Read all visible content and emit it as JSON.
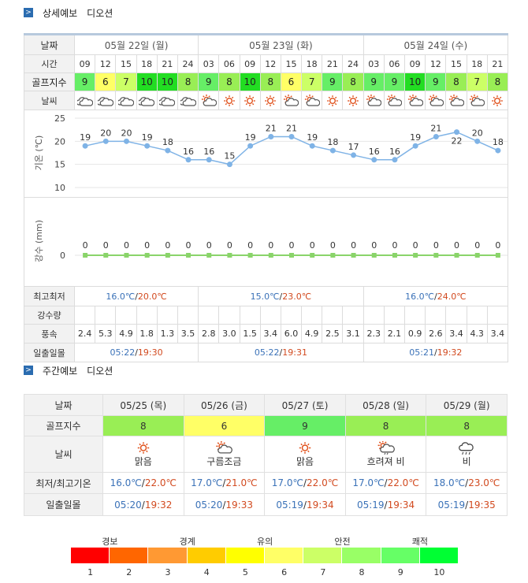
{
  "detail": {
    "title": "상세예보",
    "location": "디오션"
  },
  "labels": {
    "date": "날짜",
    "time": "시간",
    "golf": "골프지수",
    "weather": "날씨",
    "temp_axis": "기온 (℃)",
    "rain_axis": "강수 (mm)",
    "minmax": "최고최저",
    "rain": "강수량",
    "wind": "풍속",
    "sun": "일출일몰"
  },
  "days": [
    {
      "date": "05월 22일 (월)",
      "times": [
        "09",
        "12",
        "15",
        "18",
        "21",
        "24"
      ],
      "golf": [
        9,
        6,
        7,
        10,
        10,
        8
      ],
      "weather": [
        "cloud",
        "cloud",
        "cloud",
        "cloud",
        "cloud",
        "cloud"
      ],
      "min": "16.0℃",
      "max": "20.0℃",
      "sunrise": "05:22",
      "sunset": "19:30"
    },
    {
      "date": "05월 23일 (화)",
      "times": [
        "03",
        "06",
        "09",
        "12",
        "15",
        "18",
        "21",
        "24"
      ],
      "golf": [
        9,
        8,
        10,
        8,
        6,
        7,
        9,
        8
      ],
      "weather": [
        "partly",
        "sun",
        "sun",
        "sun",
        "partly",
        "partly",
        "sun",
        "sun"
      ],
      "min": "15.0℃",
      "max": "23.0℃",
      "sunrise": "05:22",
      "sunset": "19:31"
    },
    {
      "date": "05월 24일 (수)",
      "times": [
        "03",
        "06",
        "09",
        "12",
        "15",
        "18",
        "21"
      ],
      "golf": [
        9,
        9,
        10,
        9,
        8,
        7,
        8
      ],
      "weather": [
        "partly",
        "partly",
        "partly",
        "partly",
        "partly",
        "partly",
        "sun"
      ],
      "min": "16.0℃",
      "max": "24.0℃",
      "sunrise": "05:21",
      "sunset": "19:32"
    }
  ],
  "temps": [
    19,
    20,
    20,
    19,
    18,
    16,
    16,
    15,
    19,
    21,
    21,
    19,
    18,
    17,
    16,
    16,
    19,
    21,
    22,
    20,
    18
  ],
  "precip": [
    0,
    0,
    0,
    0,
    0,
    0,
    0,
    0,
    0,
    0,
    0,
    0,
    0,
    0,
    0,
    0,
    0,
    0,
    0,
    0,
    0
  ],
  "wind": [
    "2.4",
    "5.3",
    "4.9",
    "1.8",
    "1.3",
    "3.5",
    "2.8",
    "3.0",
    "1.5",
    "3.4",
    "6.0",
    "4.9",
    "2.5",
    "3.1",
    "2.3",
    "2.1",
    "0.9",
    "2.6",
    "3.4",
    "4.3",
    "3.4"
  ],
  "temp_ticks": [
    "25",
    "20",
    "15",
    "10"
  ],
  "rain_ticks": [
    "0"
  ],
  "weekly": {
    "title": "주간예보",
    "location": "디오션",
    "labels": {
      "date": "날짜",
      "golf": "골프지수",
      "weather": "날씨",
      "temp": "최저/최고기온",
      "sun": "일출일몰"
    },
    "days": [
      {
        "date": "05/25 (목)",
        "golf": 8,
        "icon": "sun",
        "weather": "맑음",
        "min": "16.0℃",
        "max": "22.0℃",
        "sunrise": "05:20",
        "sunset": "19:32"
      },
      {
        "date": "05/26 (금)",
        "golf": 6,
        "icon": "partly",
        "weather": "구름조금",
        "min": "17.0℃",
        "max": "21.0℃",
        "sunrise": "05:20",
        "sunset": "19:33"
      },
      {
        "date": "05/27 (토)",
        "golf": 9,
        "icon": "sun",
        "weather": "맑음",
        "min": "17.0℃",
        "max": "22.0℃",
        "sunrise": "05:19",
        "sunset": "19:34"
      },
      {
        "date": "05/28 (일)",
        "golf": 8,
        "icon": "cloudrain",
        "weather": "흐려져 비",
        "min": "17.0℃",
        "max": "22.0℃",
        "sunrise": "05:19",
        "sunset": "19:34"
      },
      {
        "date": "05/29 (월)",
        "golf": 8,
        "icon": "rain",
        "weather": "비",
        "min": "18.0℃",
        "max": "23.0℃",
        "sunrise": "05:19",
        "sunset": "19:35"
      }
    ]
  },
  "legend": {
    "categories": [
      "경보",
      "경계",
      "유의",
      "안전",
      "쾌적"
    ],
    "levels": [
      "1",
      "2",
      "3",
      "4",
      "5",
      "6",
      "7",
      "8",
      "9",
      "10"
    ],
    "colors": [
      "#ff0000",
      "#ff6600",
      "#ff9933",
      "#ffcc00",
      "#ffff00",
      "#ffff66",
      "#ccff66",
      "#99ff66",
      "#66ff66",
      "#00ff33"
    ]
  },
  "golf_colors": {
    "6": "#ffff66",
    "7": "#ccff66",
    "8": "#99ee55",
    "9": "#66ee66",
    "10": "#22dd22"
  }
}
